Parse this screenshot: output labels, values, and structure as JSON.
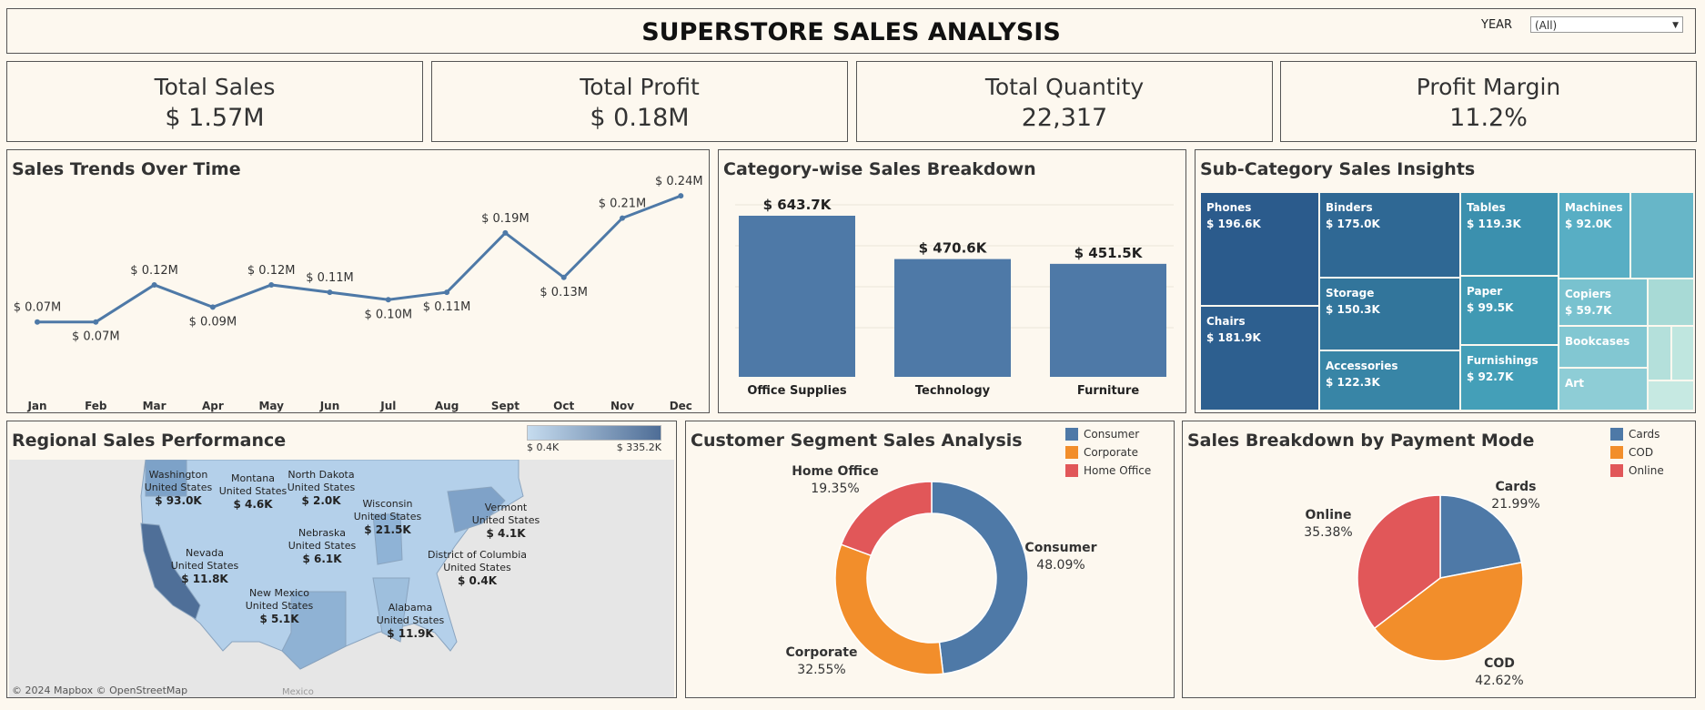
{
  "header": {
    "title": "SUPERSTORE SALES ANALYSIS",
    "year_label": "YEAR",
    "year_value": "(All)"
  },
  "kpis": [
    {
      "label": "Total Sales",
      "value": "$ 1.57M"
    },
    {
      "label": "Total Profit",
      "value": "$ 0.18M"
    },
    {
      "label": "Total Quantity",
      "value": "22,317"
    },
    {
      "label": "Profit Margin",
      "value": "11.2%"
    }
  ],
  "trend": {
    "title": "Sales Trends Over Time"
  },
  "category": {
    "title": "Category-wise Sales Breakdown"
  },
  "subcategory": {
    "title": "Sub-Category Sales Insights",
    "tiles": [
      {
        "name": "Phones",
        "value": "$ 196.6K"
      },
      {
        "name": "Chairs",
        "value": "$ 181.9K"
      },
      {
        "name": "Binders",
        "value": "$ 175.0K"
      },
      {
        "name": "Storage",
        "value": "$ 150.3K"
      },
      {
        "name": "Accessories",
        "value": "$ 122.3K"
      },
      {
        "name": "Tables",
        "value": "$ 119.3K"
      },
      {
        "name": "Paper",
        "value": "$ 99.5K"
      },
      {
        "name": "Furnishings",
        "value": "$ 92.7K"
      },
      {
        "name": "Machines",
        "value": "$ 92.0K"
      },
      {
        "name": "Copiers",
        "value": "$ 59.7K"
      },
      {
        "name": "Bookcases",
        "value": ""
      },
      {
        "name": "Art",
        "value": ""
      }
    ]
  },
  "regional": {
    "title": "Regional Sales Performance",
    "legend_min": "$ 0.4K",
    "legend_max": "$ 335.2K",
    "attribution": "© 2024 Mapbox  © OpenStreetMap",
    "mexico": "Mexico",
    "labels": [
      {
        "state": "Washington",
        "country": "United States",
        "value": "$ 93.0K"
      },
      {
        "state": "Montana",
        "country": "United States",
        "value": "$ 4.6K"
      },
      {
        "state": "North Dakota",
        "country": "United States",
        "value": "$ 2.0K"
      },
      {
        "state": "Wisconsin",
        "country": "United States",
        "value": "$ 21.5K"
      },
      {
        "state": "Vermont",
        "country": "United States",
        "value": "$ 4.1K"
      },
      {
        "state": "Nebraska",
        "country": "United States",
        "value": "$ 6.1K"
      },
      {
        "state": "District of Columbia",
        "country": "United States",
        "value": "$ 0.4K"
      },
      {
        "state": "Nevada",
        "country": "United States",
        "value": "$ 11.8K"
      },
      {
        "state": "New Mexico",
        "country": "United States",
        "value": "$ 5.1K"
      },
      {
        "state": "Alabama",
        "country": "United States",
        "value": "$ 11.9K"
      }
    ]
  },
  "segment": {
    "title": "Customer Segment Sales Analysis",
    "legend": [
      {
        "name": "Consumer",
        "color": "#4e79a7"
      },
      {
        "name": "Corporate",
        "color": "#f28e2b"
      },
      {
        "name": "Home Office",
        "color": "#e15759"
      }
    ]
  },
  "payment": {
    "title": "Sales Breakdown by Payment Mode",
    "legend": [
      {
        "name": "Cards",
        "color": "#4e79a7"
      },
      {
        "name": "COD",
        "color": "#f28e2b"
      },
      {
        "name": "Online",
        "color": "#e15759"
      }
    ]
  },
  "chart_data": [
    {
      "type": "line",
      "title": "Sales Trends Over Time",
      "categories": [
        "Jan",
        "Feb",
        "Mar",
        "Apr",
        "May",
        "Jun",
        "Jul",
        "Aug",
        "Sept",
        "Oct",
        "Nov",
        "Dec"
      ],
      "values": [
        0.07,
        0.07,
        0.12,
        0.09,
        0.12,
        0.11,
        0.1,
        0.11,
        0.19,
        0.13,
        0.21,
        0.24
      ],
      "labels": [
        "$ 0.07M",
        "$ 0.07M",
        "$ 0.12M",
        "$ 0.09M",
        "$ 0.12M",
        "$ 0.11M",
        "$ 0.10M",
        "$ 0.11M",
        "$ 0.19M",
        "$ 0.13M",
        "$ 0.21M",
        "$ 0.24M"
      ],
      "color": "#4e79a7"
    },
    {
      "type": "bar",
      "title": "Category-wise Sales Breakdown",
      "categories": [
        "Office Supplies",
        "Technology",
        "Furniture"
      ],
      "values": [
        643.7,
        470.6,
        451.5
      ],
      "labels": [
        "$ 643.7K",
        "$ 470.6K",
        "$ 451.5K"
      ],
      "color": "#4e79a7"
    },
    {
      "type": "pie",
      "title": "Customer Segment Sales Analysis",
      "donut": true,
      "categories": [
        "Consumer",
        "Corporate",
        "Home Office"
      ],
      "values": [
        48.09,
        32.55,
        19.35
      ],
      "labels": [
        "48.09%",
        "32.55%",
        "19.35%"
      ],
      "colors": [
        "#4e79a7",
        "#f28e2b",
        "#e15759"
      ]
    },
    {
      "type": "pie",
      "title": "Sales Breakdown by Payment Mode",
      "categories": [
        "Cards",
        "COD",
        "Online"
      ],
      "values": [
        21.99,
        42.62,
        35.38
      ],
      "labels": [
        "21.99%",
        "42.62%",
        "35.38%"
      ],
      "colors": [
        "#4e79a7",
        "#f28e2b",
        "#e15759"
      ]
    }
  ]
}
